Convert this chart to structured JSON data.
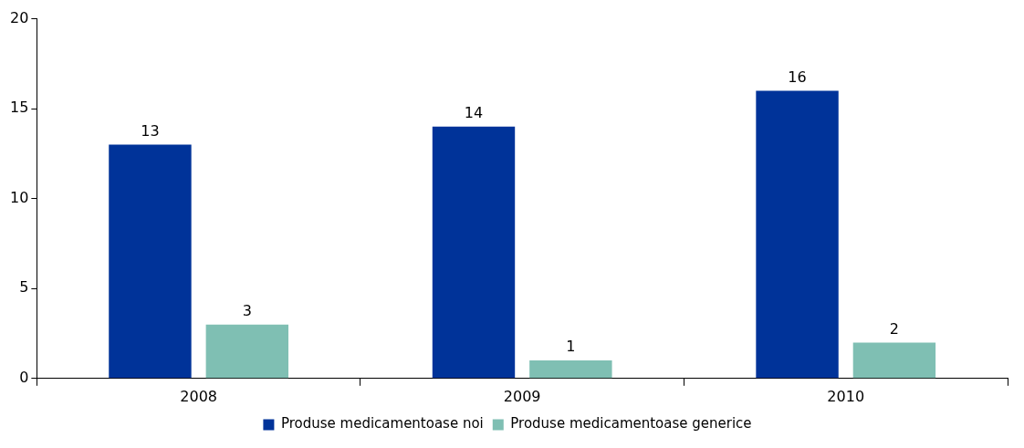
{
  "chart_data": {
    "type": "bar",
    "categories": [
      "2008",
      "2009",
      "2010"
    ],
    "series": [
      {
        "name": "Produse medicamentoase noi",
        "color": "#003399",
        "values": [
          13,
          14,
          16
        ]
      },
      {
        "name": "Produse medicamentoase generice",
        "color": "#7fbfb3",
        "values": [
          3,
          1,
          2
        ]
      }
    ],
    "ylim": [
      0,
      20
    ],
    "yticks": [
      0,
      5,
      10,
      15,
      20
    ],
    "grid": false,
    "legend": "bottom",
    "data_labels": true
  }
}
